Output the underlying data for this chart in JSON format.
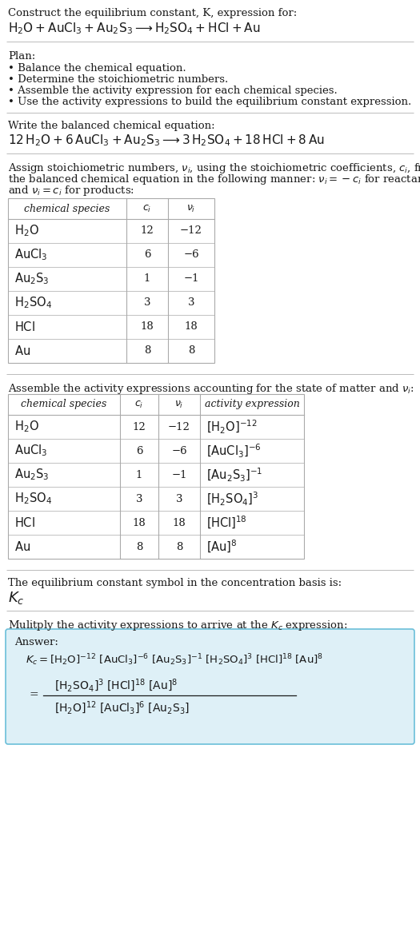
{
  "title_line1": "Construct the equilibrium constant, K, expression for:",
  "plan_header": "Plan:",
  "plan_items": [
    "Balance the chemical equation.",
    "Determine the stoichiometric numbers.",
    "Assemble the activity expression for each chemical species.",
    "Use the activity expressions to build the equilibrium constant expression."
  ],
  "balanced_header": "Write the balanced chemical equation:",
  "kc_header": "The equilibrium constant symbol in the concentration basis is:",
  "multiply_header": "Mulitply the activity expressions to arrive at the K_c expression:",
  "table1_rows": [
    [
      "H_2O",
      "12",
      "-12"
    ],
    [
      "AuCl_3",
      "6",
      "-6"
    ],
    [
      "Au_2S_3",
      "1",
      "-1"
    ],
    [
      "H_2SO_4",
      "3",
      "3"
    ],
    [
      "HCl",
      "18",
      "18"
    ],
    [
      "Au",
      "8",
      "8"
    ]
  ],
  "table2_act": [
    "[H_2O]^{-12}",
    "[AuCl_3]^{-6}",
    "[Au_2S_3]^{-1}",
    "[H_2SO_4]^{3}",
    "[HCl]^{18}",
    "[Au]^{8}"
  ],
  "answer_box_color": "#def0f7",
  "answer_border_color": "#6bbfd9",
  "bg_color": "#ffffff",
  "text_color": "#1a1a1a",
  "table_border_color": "#aaaaaa",
  "separator_color": "#bbbbbb"
}
